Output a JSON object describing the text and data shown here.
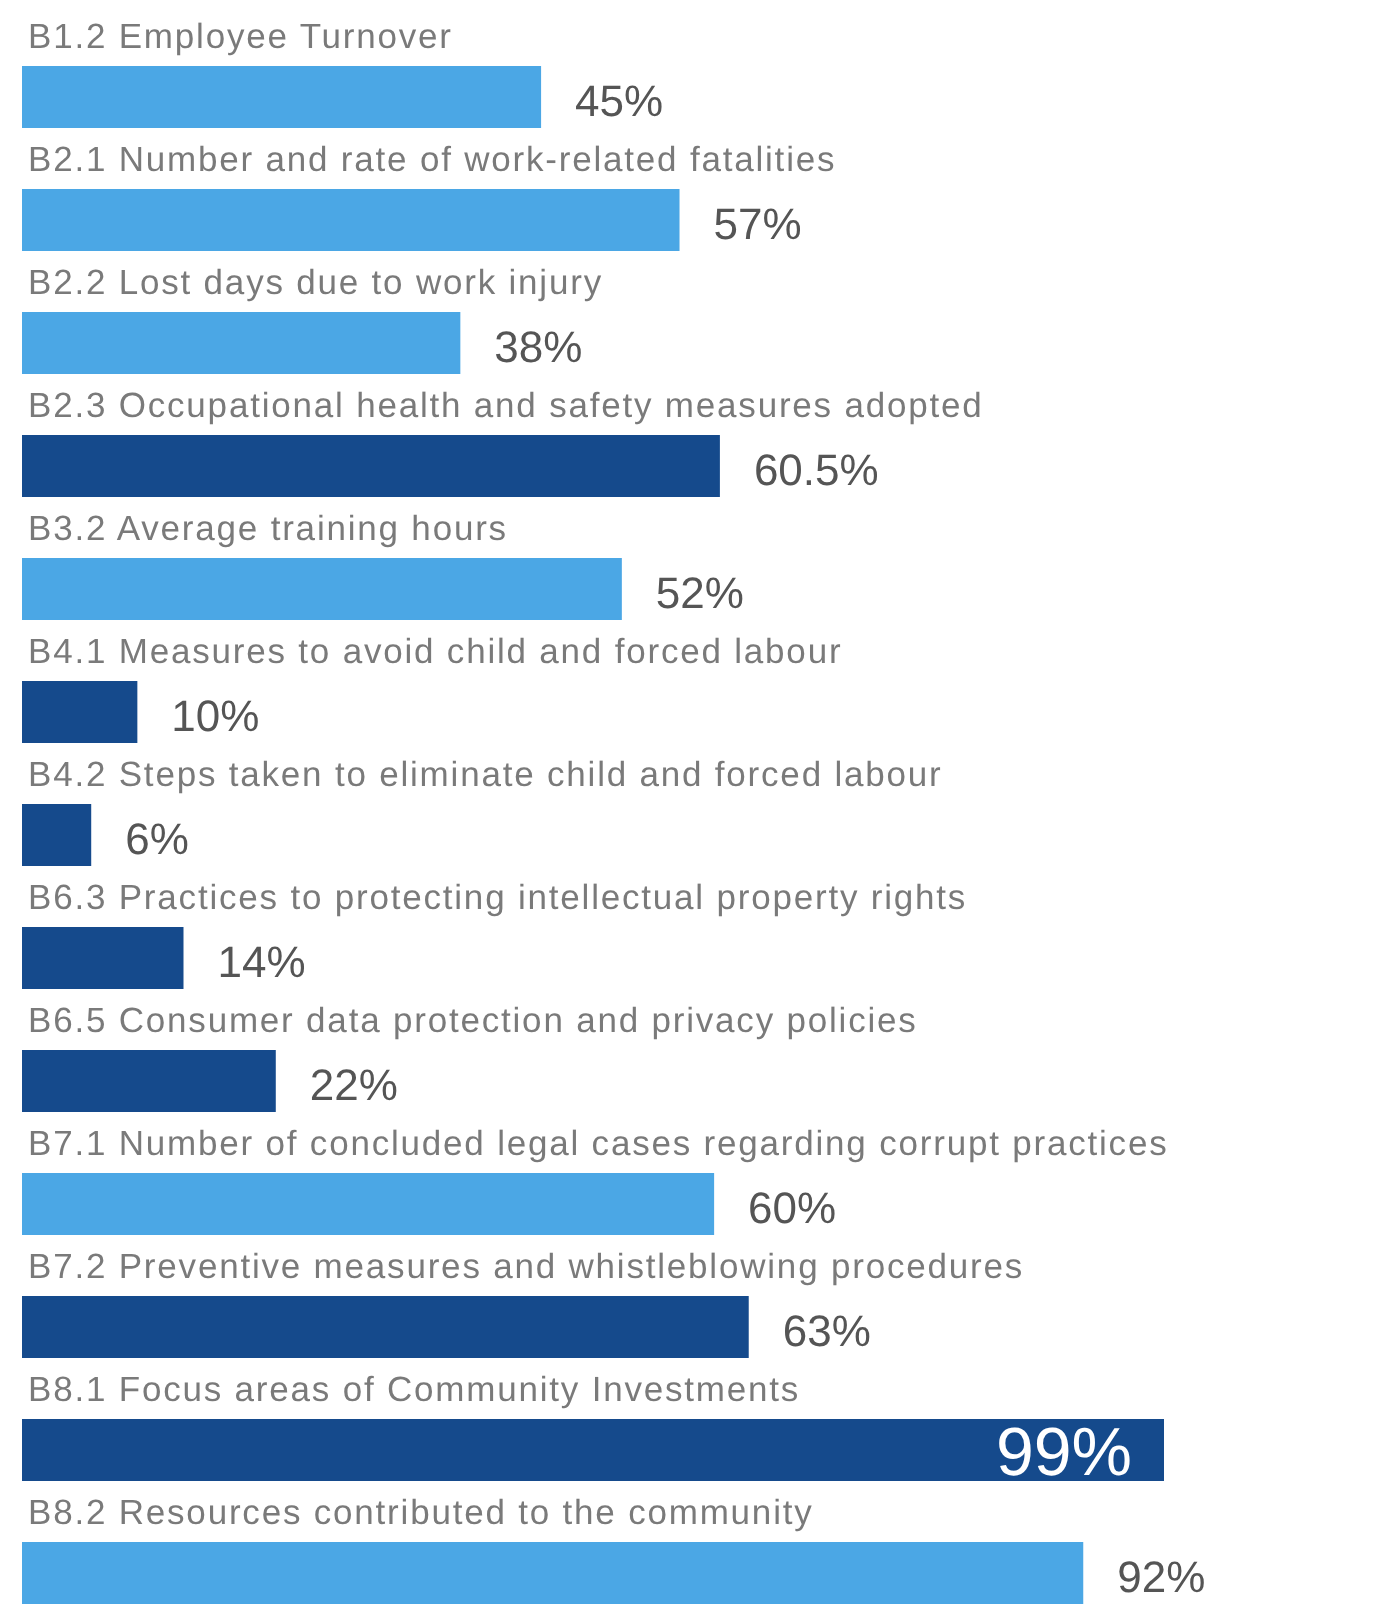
{
  "chart_data": {
    "type": "bar",
    "orientation": "horizontal",
    "categories": [
      "B1.2 Employee Turnover",
      "B2.1 Number and rate of work-related fatalities",
      "B2.2 Lost days due to work injury",
      "B2.3 Occupational health and safety measures adopted",
      "B3.2 Average training hours",
      "B4.1 Measures to avoid child and forced labour",
      "B4.2 Steps taken to eliminate child and forced labour",
      "B6.3 Practices to protecting intellectual property rights",
      "B6.5 Consumer data protection and privacy policies",
      "B7.1 Number of concluded legal cases regarding corrupt practices",
      "B7.2 Preventive measures and whistleblowing procedures",
      "B8.1 Focus areas of Community Investments",
      "B8.2 Resources contributed to the community"
    ],
    "values": [
      45,
      57,
      38,
      60.5,
      52,
      10,
      6,
      14,
      22,
      60,
      63,
      99,
      92
    ],
    "colors": [
      "#4ba7e5",
      "#4ba7e5",
      "#4ba7e5",
      "#154a8c",
      "#4ba7e5",
      "#154a8c",
      "#154a8c",
      "#154a8c",
      "#154a8c",
      "#4ba7e5",
      "#154a8c",
      "#154a8c",
      "#4ba7e5"
    ],
    "value_labels": [
      "45%",
      "57%",
      "38%",
      "60.5%",
      "52%",
      "10%",
      "6%",
      "14%",
      "22%",
      "60%",
      "63%",
      "99%",
      "92%"
    ]
  }
}
